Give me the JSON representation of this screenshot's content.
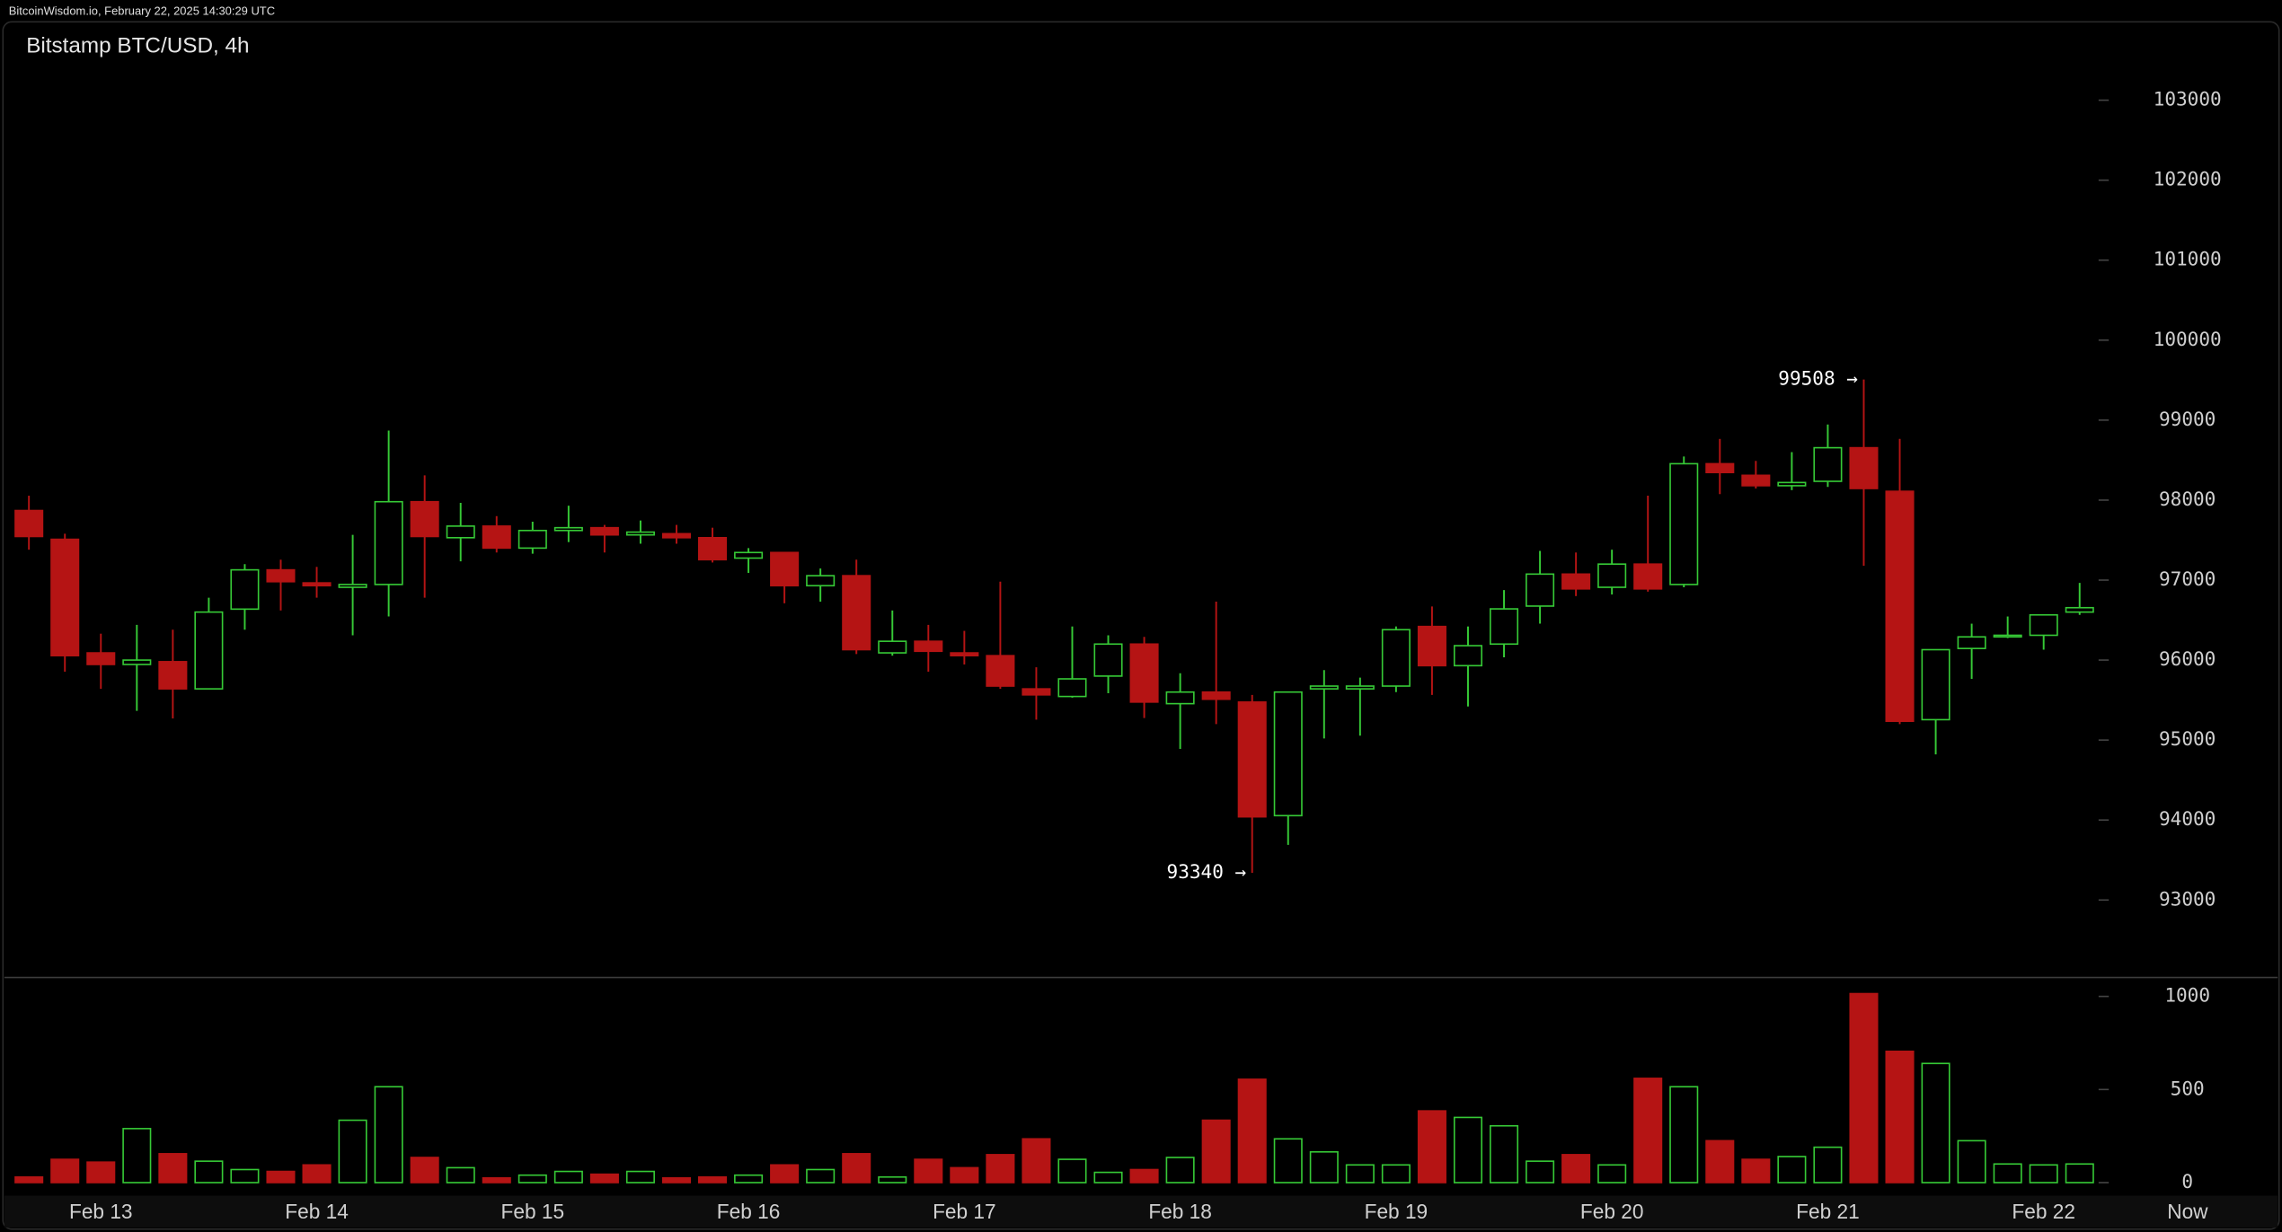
{
  "header": "BitcoinWisdom.io, February 22, 2025 14:30:29 UTC",
  "chart_data": [
    {
      "type": "candlestick",
      "title": "Bitstamp BTC/USD, 4h",
      "x": [
        0,
        1,
        2,
        3,
        4,
        5,
        6,
        7,
        8,
        9,
        10,
        11,
        12,
        13,
        14,
        15,
        16,
        17,
        18,
        19,
        20,
        21,
        22,
        23,
        24,
        25,
        26,
        27,
        28,
        29,
        30,
        31,
        32,
        33,
        34,
        35,
        36,
        37,
        38,
        39,
        40,
        41,
        42,
        43,
        44,
        45,
        46,
        47,
        48,
        49,
        50,
        51,
        52,
        53,
        54,
        55,
        56,
        57
      ],
      "open": [
        97870,
        97510,
        96090,
        95945,
        95980,
        95640,
        96637,
        97128,
        96965,
        96910,
        96945,
        97980,
        97530,
        97675,
        97400,
        97620,
        97655,
        97565,
        97580,
        97530,
        97275,
        97345,
        96930,
        97055,
        96090,
        96235,
        96090,
        96055,
        95640,
        95545,
        95800,
        96200,
        95455,
        95600,
        95475,
        94055,
        95640,
        95640,
        95675,
        96420,
        95930,
        96200,
        96675,
        97075,
        96910,
        97200,
        96945,
        98455,
        98310,
        98180,
        98235,
        98655,
        98110,
        95255,
        96145,
        96290,
        96310,
        96600
      ],
      "high": [
        98055,
        97580,
        96330,
        96440,
        96380,
        96780,
        97200,
        97255,
        97165,
        97565,
        98870,
        98310,
        97965,
        97800,
        97730,
        97930,
        97690,
        97745,
        97690,
        97655,
        97400,
        97345,
        97145,
        97255,
        96620,
        96440,
        96365,
        96980,
        95910,
        96420,
        96310,
        96290,
        95835,
        96730,
        95565,
        95600,
        95875,
        95780,
        96420,
        96670,
        96420,
        96875,
        97365,
        97345,
        97380,
        98055,
        98545,
        98765,
        98490,
        98600,
        98945,
        99508,
        98765,
        96130,
        96455,
        96545,
        96565,
        96965
      ],
      "low": [
        97380,
        95855,
        95640,
        95365,
        95270,
        95640,
        96380,
        96620,
        96780,
        96310,
        96545,
        96780,
        97235,
        97345,
        97330,
        97475,
        97345,
        97455,
        97455,
        97220,
        97090,
        96710,
        96730,
        96075,
        96055,
        95855,
        95945,
        95640,
        95255,
        95530,
        95585,
        95275,
        94890,
        95200,
        93340,
        93690,
        95020,
        95055,
        95600,
        95565,
        95420,
        96035,
        96455,
        96800,
        96820,
        96855,
        96910,
        98075,
        98145,
        98125,
        98165,
        97180,
        95200,
        94820,
        95765,
        96275,
        96130,
        96565
      ],
      "close": [
        97545,
        96055,
        95945,
        96000,
        95640,
        96600,
        97128,
        96980,
        96930,
        96945,
        97980,
        97545,
        97675,
        97400,
        97620,
        97655,
        97565,
        97600,
        97530,
        97255,
        97345,
        96930,
        97055,
        96130,
        96235,
        96110,
        96055,
        95675,
        95565,
        95765,
        96200,
        95475,
        95600,
        95510,
        94040,
        95600,
        95675,
        95675,
        96380,
        95930,
        96180,
        96640,
        97075,
        96890,
        97200,
        96890,
        98455,
        98345,
        98180,
        98220,
        98655,
        98145,
        95235,
        96130,
        96290,
        96310,
        96565,
        96655
      ],
      "up_color": "#36c936",
      "down_color": "#b51414",
      "xlim": [
        -0.6,
        62.3
      ],
      "xticks": [
        {
          "value": 2,
          "label": "Feb 13"
        },
        {
          "value": 8,
          "label": "Feb 14"
        },
        {
          "value": 14,
          "label": "Feb 15"
        },
        {
          "value": 20,
          "label": "Feb 16"
        },
        {
          "value": 26,
          "label": "Feb 17"
        },
        {
          "value": 32,
          "label": "Feb 18"
        },
        {
          "value": 38,
          "label": "Feb 19"
        },
        {
          "value": 44,
          "label": "Feb 20"
        },
        {
          "value": 50,
          "label": "Feb 21"
        },
        {
          "value": 56,
          "label": "Feb 22"
        },
        {
          "value": 60,
          "label": "Now"
        }
      ],
      "ylim": [
        92050,
        103980
      ],
      "yticks": [
        93000,
        94000,
        95000,
        96000,
        97000,
        98000,
        99000,
        100000,
        101000,
        102000,
        103000
      ],
      "annotations": [
        {
          "label": "99508 →",
          "x": 51,
          "y": 99508
        },
        {
          "label": "93340 →",
          "x": 34,
          "y": 93340
        }
      ]
    },
    {
      "type": "volume",
      "x": [
        0,
        1,
        2,
        3,
        4,
        5,
        6,
        7,
        8,
        9,
        10,
        11,
        12,
        13,
        14,
        15,
        16,
        17,
        18,
        19,
        20,
        21,
        22,
        23,
        24,
        25,
        26,
        27,
        28,
        29,
        30,
        31,
        32,
        33,
        34,
        35,
        36,
        37,
        38,
        39,
        40,
        41,
        42,
        43,
        44,
        45,
        46,
        47,
        48,
        49,
        50,
        51,
        52,
        53,
        54,
        55,
        56,
        57
      ],
      "values": [
        30,
        125,
        110,
        290,
        155,
        115,
        70,
        60,
        95,
        335,
        515,
        135,
        80,
        25,
        40,
        60,
        45,
        60,
        25,
        30,
        40,
        95,
        70,
        155,
        30,
        125,
        80,
        150,
        235,
        125,
        55,
        70,
        135,
        335,
        555,
        235,
        165,
        95,
        95,
        385,
        350,
        305,
        115,
        150,
        95,
        560,
        515,
        225,
        125,
        140,
        190,
        1015,
        705,
        640,
        225,
        100,
        95,
        100
      ],
      "xlim": [
        -0.6,
        62.3
      ],
      "ylim": [
        -70,
        1094
      ],
      "yticks": [
        0,
        500,
        1000
      ]
    }
  ]
}
